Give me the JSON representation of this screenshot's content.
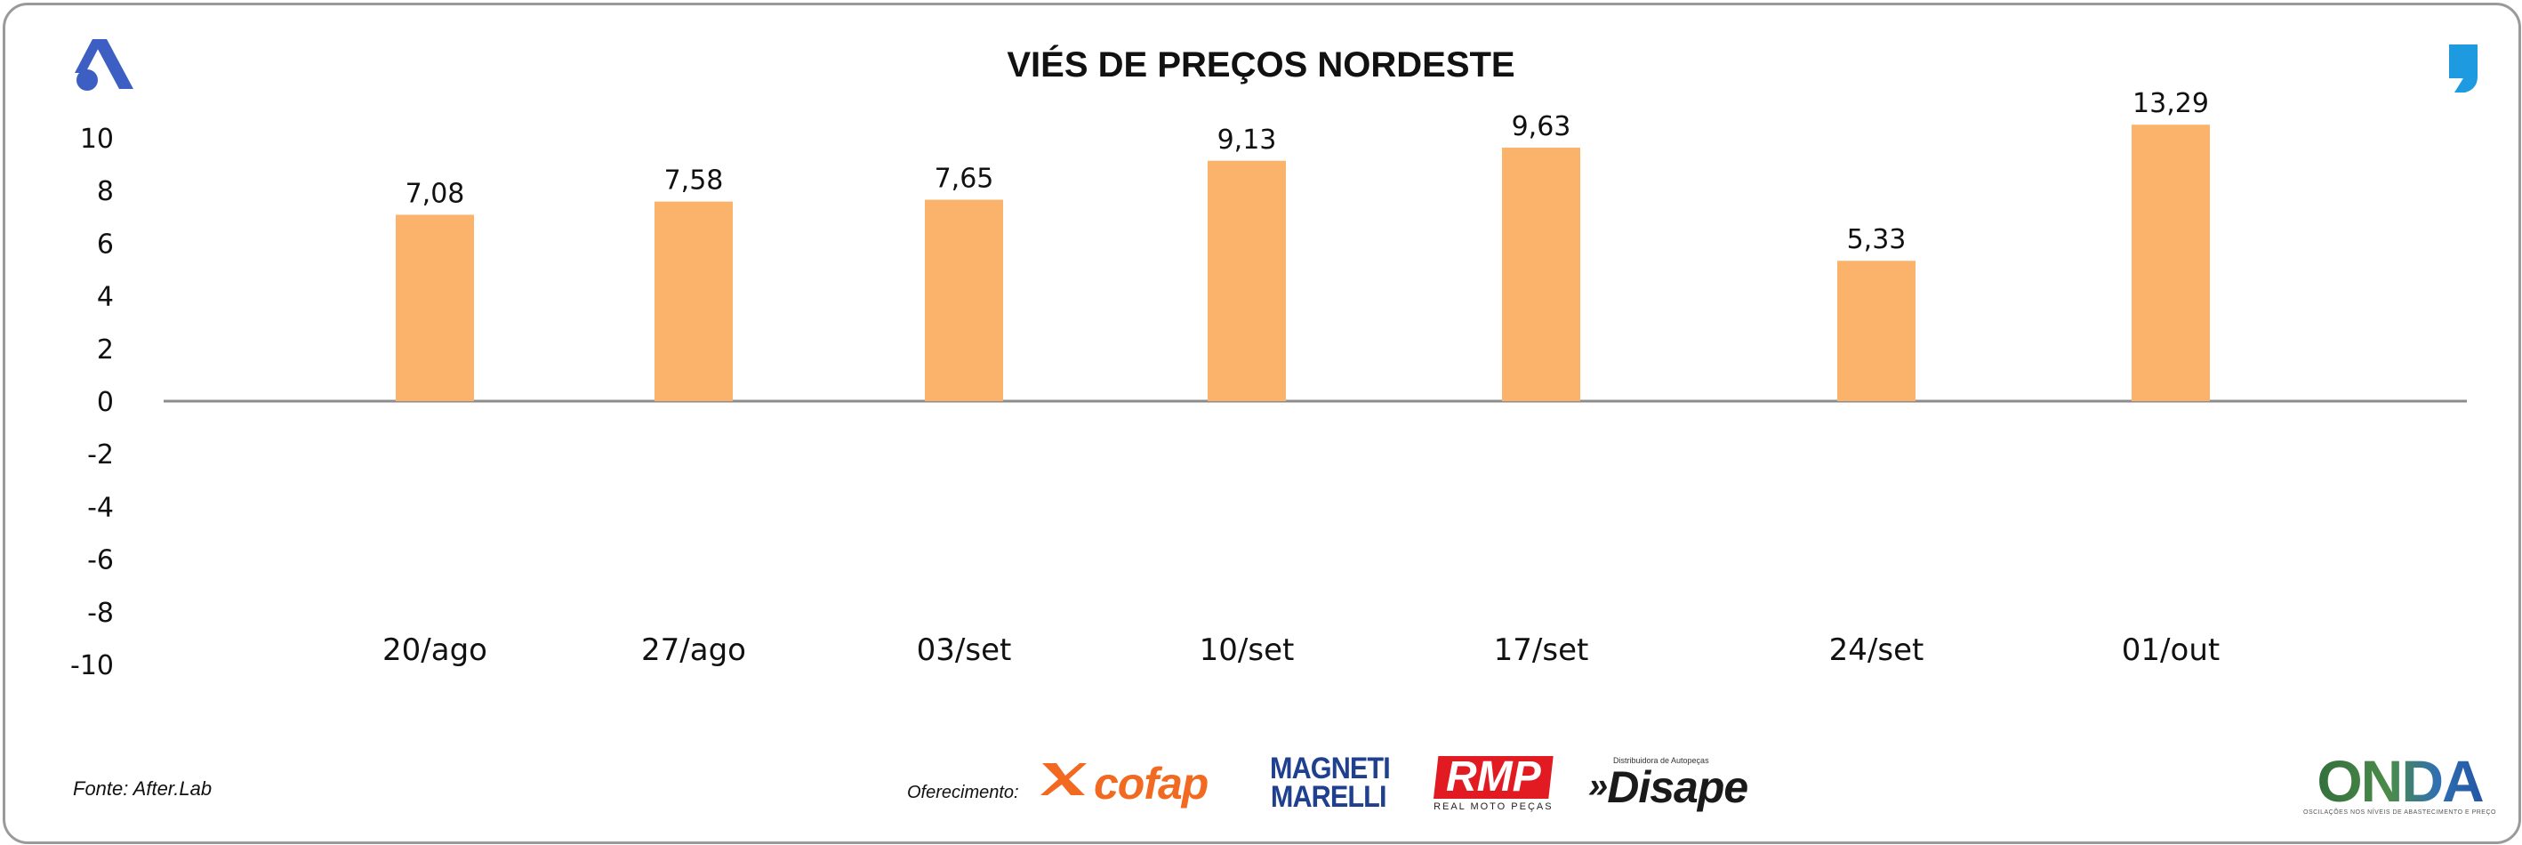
{
  "chart_data": {
    "type": "bar",
    "title": "VIÉS DE PREÇOS NORDESTE",
    "categories": [
      "20/ago",
      "27/ago",
      "03/set",
      "10/set",
      "17/set",
      "24/set",
      "01/out"
    ],
    "values": [
      7.08,
      7.58,
      7.65,
      9.13,
      9.63,
      5.33,
      13.29
    ],
    "value_labels": [
      "7,08",
      "7,58",
      "7,65",
      "9,13",
      "9,63",
      "5,33",
      "13,29"
    ],
    "y_ticks": [
      10,
      8,
      6,
      4,
      2,
      0,
      -2,
      -4,
      -6,
      -8,
      -10
    ],
    "ylim": [
      -10,
      10
    ],
    "xlabel": "",
    "ylabel": "",
    "grid": false,
    "legend": "none",
    "bar_color": "#fbb36b"
  },
  "footer": {
    "source": "Fonte: After.Lab",
    "sponsor_label": "Oferecimento:"
  },
  "logos": {
    "cofap": "cofap",
    "magneti_line1": "MAGNETI",
    "magneti_line2": "MARELLI",
    "rmp": "RMP",
    "rmp_sub": "REAL MOTO PEÇAS",
    "disape_tag": "Distribuidora de Autopeças",
    "disape": "Disape",
    "onda": "ONDA",
    "onda_sub": "OSCILAÇÕES NOS NÍVEIS DE ABASTECIMENTO E PREÇO"
  },
  "colors": {
    "accent_blue": "#3d5fc4",
    "quote_blue": "#1e9be0",
    "cofap_orange": "#f26a21",
    "rmp_red": "#e21b23"
  }
}
